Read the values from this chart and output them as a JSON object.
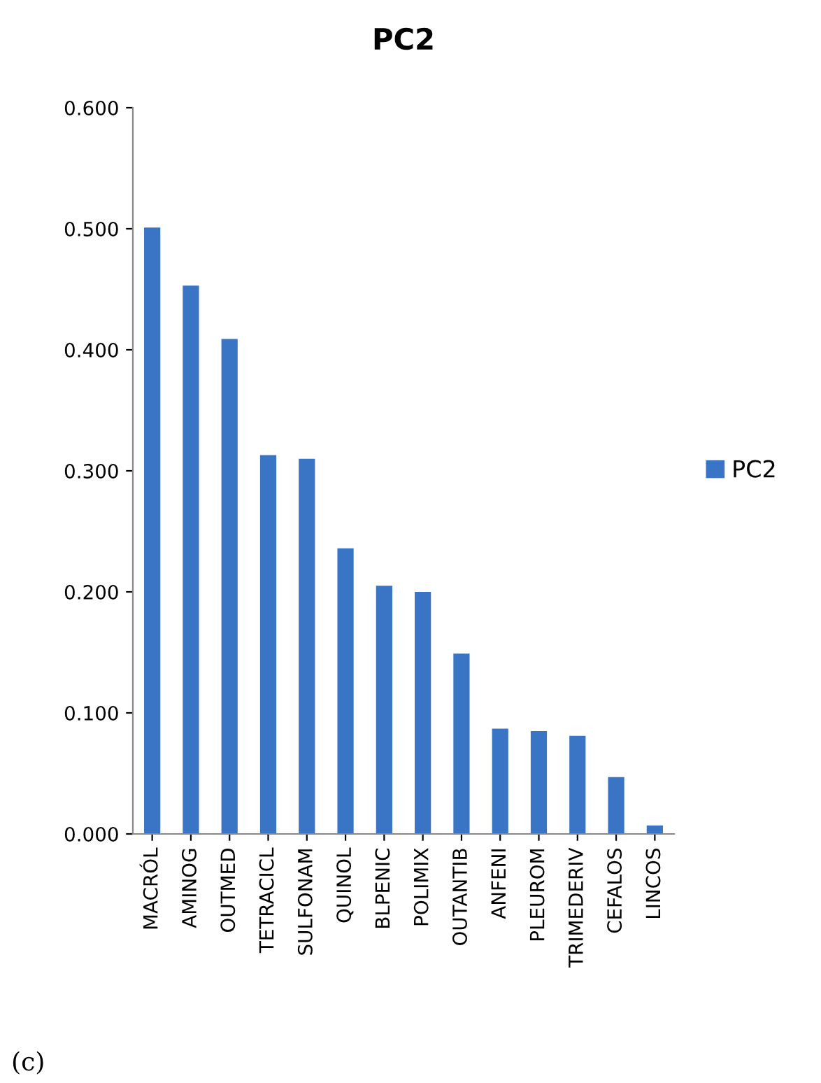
{
  "chart_data": {
    "type": "bar",
    "title": "PC2",
    "categories": [
      "MACRÓL",
      "AMINOG",
      "OUTMED",
      "TETRACICL",
      "SULFONAM",
      "QUINOL",
      "BLPENIC",
      "POLIMIX",
      "OUTANTIB",
      "ANFENI",
      "PLEUROM",
      "TRIMEDERIV",
      "CEFALOS",
      "LINCOS"
    ],
    "series": [
      {
        "name": "PC2",
        "color": "#3a74c4",
        "values": [
          0.501,
          0.453,
          0.409,
          0.313,
          0.31,
          0.236,
          0.205,
          0.2,
          0.149,
          0.087,
          0.085,
          0.081,
          0.047,
          0.007
        ]
      }
    ],
    "ylim": [
      0,
      0.6
    ],
    "yticks": [
      {
        "value": 0,
        "label": "0.000"
      },
      {
        "value": 0.1,
        "label": "0.100"
      },
      {
        "value": 0.2,
        "label": "0.200"
      },
      {
        "value": 0.3,
        "label": "0.300"
      },
      {
        "value": 0.4,
        "label": "0.400"
      },
      {
        "value": 0.5,
        "label": "0.500"
      },
      {
        "value": 0.6,
        "label": "0.600"
      }
    ],
    "legend": "right",
    "grid": false,
    "annotations": [
      "(c)"
    ]
  }
}
